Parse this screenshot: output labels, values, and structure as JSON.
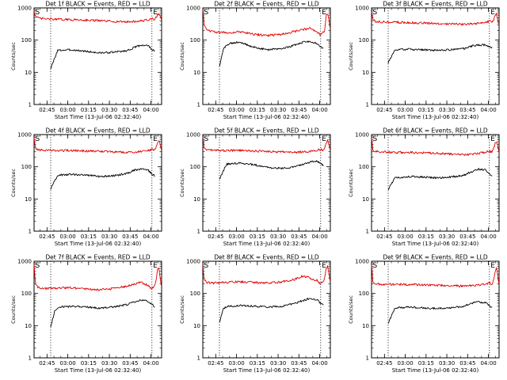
{
  "figure": {
    "xlabel": "Start Time (13-Jul-06 02:32:40)",
    "ylabel": "Counts/sec",
    "x_tick_labels": [
      "02:45",
      "03:00",
      "03:15",
      "03:30",
      "03:45",
      "04:00"
    ],
    "y_tick_labels": [
      "1",
      "10",
      "100",
      "1000"
    ],
    "start_marker": "S",
    "end_marker": "E",
    "colors": {
      "events": "#000000",
      "lld": "#e00000",
      "axes": "#000000"
    }
  },
  "chart_data": [
    {
      "type": "line",
      "title": "Det 1f BLACK = Events, RED = LLD",
      "yscale": "log",
      "ylim": [
        1,
        1000
      ],
      "x_unit": "minutes after 02:32:40",
      "xlim": [
        3,
        95
      ],
      "vlines": [
        15,
        88
      ],
      "series": [
        {
          "name": "Events",
          "color": "#000000",
          "x": [
            15,
            20,
            30,
            40,
            50,
            60,
            70,
            75,
            80,
            85,
            88,
            90
          ],
          "y": [
            13,
            48,
            50,
            45,
            40,
            42,
            47,
            58,
            70,
            68,
            52,
            44
          ]
        },
        {
          "name": "LLD",
          "color": "#e00000",
          "x": [
            3,
            4,
            6,
            10,
            20,
            30,
            40,
            50,
            60,
            70,
            80,
            85,
            88,
            90,
            91,
            92,
            93,
            94,
            95
          ],
          "y": [
            800,
            550,
            480,
            460,
            440,
            430,
            420,
            400,
            380,
            370,
            390,
            420,
            460,
            450,
            500,
            600,
            650,
            550,
            450
          ]
        }
      ]
    },
    {
      "type": "line",
      "title": "Det 2f BLACK = Events, RED = LLD",
      "yscale": "log",
      "ylim": [
        1,
        1000
      ],
      "x_unit": "minutes after 02:32:40",
      "xlim": [
        3,
        95
      ],
      "vlines": [
        15,
        88
      ],
      "series": [
        {
          "name": "Events",
          "color": "#000000",
          "x": [
            15,
            18,
            22,
            30,
            40,
            50,
            60,
            70,
            75,
            80,
            85,
            88,
            90
          ],
          "y": [
            15,
            55,
            80,
            85,
            60,
            50,
            55,
            70,
            85,
            90,
            80,
            62,
            55
          ]
        },
        {
          "name": "LLD",
          "color": "#e00000",
          "x": [
            3,
            4,
            6,
            10,
            20,
            30,
            40,
            50,
            60,
            70,
            75,
            80,
            85,
            88,
            90,
            91,
            92,
            93,
            94,
            95
          ],
          "y": [
            900,
            300,
            220,
            180,
            170,
            180,
            150,
            140,
            150,
            190,
            210,
            230,
            190,
            140,
            180,
            200,
            600,
            700,
            400,
            200
          ]
        }
      ]
    },
    {
      "type": "line",
      "title": "Det 3f BLACK = Events, RED = LLD",
      "yscale": "log",
      "ylim": [
        1,
        1000
      ],
      "x_unit": "minutes after 02:32:40",
      "xlim": [
        3,
        95
      ],
      "vlines": [
        15,
        88
      ],
      "series": [
        {
          "name": "Events",
          "color": "#000000",
          "x": [
            15,
            20,
            30,
            40,
            50,
            60,
            70,
            75,
            80,
            85,
            88,
            90
          ],
          "y": [
            20,
            50,
            52,
            50,
            48,
            50,
            55,
            65,
            72,
            70,
            62,
            58
          ]
        },
        {
          "name": "LLD",
          "color": "#e00000",
          "x": [
            3,
            4,
            6,
            10,
            20,
            30,
            40,
            50,
            60,
            70,
            80,
            85,
            88,
            90,
            91,
            92,
            93,
            94,
            95
          ],
          "y": [
            800,
            420,
            380,
            370,
            360,
            350,
            340,
            330,
            320,
            310,
            330,
            360,
            380,
            360,
            420,
            550,
            700,
            400,
            300
          ]
        }
      ]
    },
    {
      "type": "line",
      "title": "Det 4f BLACK = Events, RED = LLD",
      "yscale": "log",
      "ylim": [
        1,
        1000
      ],
      "x_unit": "minutes after 02:32:40",
      "xlim": [
        3,
        95
      ],
      "vlines": [
        15,
        88
      ],
      "series": [
        {
          "name": "Events",
          "color": "#000000",
          "x": [
            15,
            20,
            30,
            40,
            50,
            60,
            70,
            75,
            80,
            85,
            88,
            90
          ],
          "y": [
            20,
            55,
            58,
            55,
            50,
            52,
            62,
            78,
            85,
            80,
            60,
            52
          ]
        },
        {
          "name": "LLD",
          "color": "#e00000",
          "x": [
            3,
            4,
            6,
            10,
            20,
            30,
            40,
            50,
            60,
            70,
            80,
            85,
            88,
            90,
            91,
            92,
            93,
            94,
            95
          ],
          "y": [
            800,
            380,
            340,
            330,
            320,
            320,
            310,
            300,
            290,
            280,
            300,
            320,
            340,
            330,
            400,
            550,
            700,
            500,
            300
          ]
        }
      ]
    },
    {
      "type": "line",
      "title": "Det 5f BLACK = Events, RED = LLD",
      "yscale": "log",
      "ylim": [
        1,
        1000
      ],
      "x_unit": "minutes after 02:32:40",
      "xlim": [
        3,
        95
      ],
      "vlines": [
        15,
        88
      ],
      "series": [
        {
          "name": "Events",
          "color": "#000000",
          "x": [
            15,
            20,
            30,
            40,
            50,
            60,
            70,
            75,
            80,
            85,
            88,
            90
          ],
          "y": [
            40,
            120,
            130,
            115,
            95,
            90,
            100,
            120,
            140,
            150,
            130,
            110
          ]
        },
        {
          "name": "LLD",
          "color": "#e00000",
          "x": [
            3,
            4,
            6,
            10,
            20,
            30,
            40,
            50,
            60,
            70,
            80,
            85,
            88,
            90,
            91,
            92,
            93,
            94,
            95
          ],
          "y": [
            800,
            380,
            340,
            330,
            320,
            320,
            310,
            300,
            290,
            280,
            300,
            320,
            340,
            330,
            400,
            550,
            700,
            500,
            300
          ]
        }
      ]
    },
    {
      "type": "line",
      "title": "Det 6f BLACK = Events, RED = LLD",
      "yscale": "log",
      "ylim": [
        1,
        1000
      ],
      "x_unit": "minutes after 02:32:40",
      "xlim": [
        3,
        95
      ],
      "vlines": [
        15,
        88
      ],
      "series": [
        {
          "name": "Events",
          "color": "#000000",
          "x": [
            15,
            20,
            30,
            40,
            50,
            60,
            70,
            75,
            80,
            85,
            88,
            90
          ],
          "y": [
            20,
            45,
            50,
            48,
            45,
            48,
            55,
            70,
            85,
            80,
            60,
            52
          ]
        },
        {
          "name": "LLD",
          "color": "#e00000",
          "x": [
            3,
            4,
            6,
            10,
            20,
            30,
            40,
            50,
            60,
            70,
            80,
            85,
            88,
            90,
            91,
            92,
            93,
            94,
            95
          ],
          "y": [
            800,
            330,
            300,
            290,
            280,
            280,
            270,
            260,
            250,
            240,
            260,
            280,
            300,
            290,
            360,
            500,
            650,
            450,
            280
          ]
        }
      ]
    },
    {
      "type": "line",
      "title": "Det 7f BLACK = Events, RED = LLD",
      "yscale": "log",
      "ylim": [
        1,
        1000
      ],
      "x_unit": "minutes after 02:32:40",
      "xlim": [
        3,
        95
      ],
      "vlines": [
        15,
        88
      ],
      "series": [
        {
          "name": "Events",
          "color": "#000000",
          "x": [
            15,
            18,
            22,
            30,
            40,
            50,
            60,
            70,
            75,
            80,
            85,
            88,
            90
          ],
          "y": [
            9,
            30,
            38,
            40,
            38,
            35,
            38,
            45,
            55,
            62,
            58,
            45,
            38
          ]
        },
        {
          "name": "LLD",
          "color": "#e00000",
          "x": [
            3,
            4,
            6,
            10,
            20,
            30,
            40,
            50,
            60,
            70,
            75,
            80,
            85,
            88,
            90,
            91,
            92,
            93,
            94,
            95
          ],
          "y": [
            800,
            200,
            150,
            140,
            145,
            150,
            140,
            130,
            140,
            170,
            190,
            220,
            180,
            140,
            170,
            250,
            550,
            650,
            300,
            150
          ]
        }
      ]
    },
    {
      "type": "line",
      "title": "Det 8f BLACK = Events, RED = LLD",
      "yscale": "log",
      "ylim": [
        1,
        1000
      ],
      "x_unit": "minutes after 02:32:40",
      "xlim": [
        3,
        95
      ],
      "vlines": [
        15,
        88
      ],
      "series": [
        {
          "name": "Events",
          "color": "#000000",
          "x": [
            15,
            18,
            22,
            30,
            40,
            50,
            60,
            70,
            75,
            80,
            85,
            88,
            90
          ],
          "y": [
            12,
            35,
            40,
            42,
            40,
            38,
            40,
            50,
            60,
            70,
            65,
            50,
            42
          ]
        },
        {
          "name": "LLD",
          "color": "#e00000",
          "x": [
            3,
            4,
            6,
            10,
            20,
            30,
            40,
            50,
            60,
            70,
            75,
            80,
            85,
            88,
            90,
            91,
            92,
            93,
            94,
            95
          ],
          "y": [
            800,
            260,
            220,
            210,
            220,
            230,
            220,
            210,
            230,
            280,
            350,
            300,
            260,
            200,
            240,
            300,
            600,
            700,
            400,
            220
          ]
        }
      ]
    },
    {
      "type": "line",
      "title": "Det 9f BLACK = Events, RED = LLD",
      "yscale": "log",
      "ylim": [
        1,
        1000
      ],
      "x_unit": "minutes after 02:32:40",
      "xlim": [
        3,
        95
      ],
      "vlines": [
        15,
        88
      ],
      "series": [
        {
          "name": "Events",
          "color": "#000000",
          "x": [
            15,
            20,
            30,
            40,
            50,
            60,
            70,
            75,
            80,
            85,
            88,
            90
          ],
          "y": [
            12,
            35,
            38,
            36,
            34,
            36,
            40,
            50,
            55,
            52,
            42,
            36
          ]
        },
        {
          "name": "LLD",
          "color": "#e00000",
          "x": [
            3,
            4,
            6,
            10,
            20,
            30,
            40,
            50,
            60,
            70,
            80,
            85,
            88,
            90,
            91,
            92,
            93,
            94,
            95
          ],
          "y": [
            800,
            220,
            200,
            195,
            190,
            190,
            185,
            180,
            175,
            170,
            180,
            200,
            210,
            200,
            260,
            450,
            650,
            350,
            200
          ]
        }
      ]
    }
  ]
}
